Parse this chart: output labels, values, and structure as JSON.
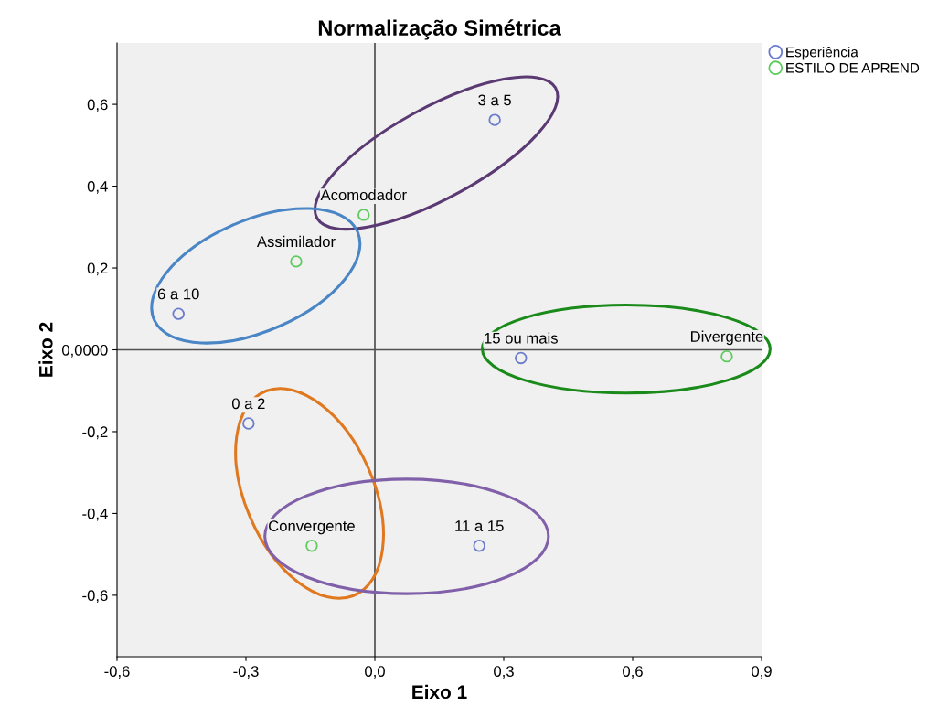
{
  "chart_data": {
    "type": "scatter",
    "title": "Normalização Simétrica",
    "xlabel": "Eixo 1",
    "ylabel": "Eixo 2",
    "series": [
      {
        "name": "Esperiência",
        "color": "#6a7ccc",
        "x": [
          0.279,
          -0.457,
          0.34,
          -0.294,
          0.243
        ],
        "values": [
          0.562,
          0.088,
          -0.02,
          -0.18,
          -0.479
        ]
      },
      {
        "name": "ESTILO DE APREND",
        "color": "#5fcb5f",
        "x": [
          -0.026,
          -0.183,
          0.819,
          -0.147
        ],
        "values": [
          0.33,
          0.216,
          -0.016,
          -0.479
        ]
      }
    ],
    "annotations": [
      {
        "text": "3 a 5",
        "x": 0.279,
        "y": 0.562
      },
      {
        "text": "6 a 10",
        "x": -0.457,
        "y": 0.088
      },
      {
        "text": "15 ou mais",
        "x": 0.34,
        "y": -0.02
      },
      {
        "text": "0 a 2",
        "x": -0.294,
        "y": -0.18
      },
      {
        "text": "11 a 15",
        "x": 0.243,
        "y": -0.479
      },
      {
        "text": "Acomodador",
        "x": -0.026,
        "y": 0.33
      },
      {
        "text": "Assimilador",
        "x": -0.183,
        "y": 0.216
      },
      {
        "text": "Divergente",
        "x": 0.819,
        "y": -0.016
      },
      {
        "text": "Convergente",
        "x": -0.147,
        "y": -0.479
      }
    ],
    "xlim": [
      -0.6,
      0.9
    ],
    "ylim": [
      -0.75,
      0.75
    ],
    "xticks": [
      {
        "value": -0.6,
        "label": "-0,6"
      },
      {
        "value": -0.3,
        "label": "-0,3"
      },
      {
        "value": 0,
        "label": "0,0"
      },
      {
        "value": 0.3,
        "label": "0,3"
      },
      {
        "value": 0.6,
        "label": "0,6"
      },
      {
        "value": 0.9,
        "label": "0,9"
      }
    ],
    "yticks": [
      {
        "value": -0.6,
        "label": "-0,6"
      },
      {
        "value": -0.4,
        "label": "-0,4"
      },
      {
        "value": -0.2,
        "label": "-0,2"
      },
      {
        "value": 0,
        "label": "0,0000"
      },
      {
        "value": 0.2,
        "label": "0,2"
      },
      {
        "value": 0.4,
        "label": "0,4"
      },
      {
        "value": 0.6,
        "label": "0,6"
      }
    ],
    "ref_lines": [
      {
        "axis": "x",
        "value": 0,
        "color": "#2a2a2a"
      },
      {
        "axis": "y",
        "value": 0,
        "color": "#505050"
      }
    ],
    "marker": "circle",
    "grid": false,
    "legend": "top right"
  }
}
